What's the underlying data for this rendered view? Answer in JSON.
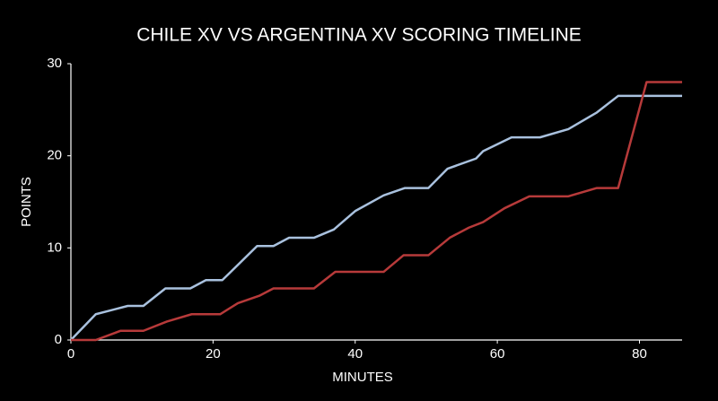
{
  "chart_data": {
    "type": "line",
    "title": "CHILE XV VS ARGENTINA XV SCORING TIMELINE",
    "x_label": "MINUTES",
    "y_label": "POINTS",
    "xlim": [
      0,
      86
    ],
    "xticks": [
      0,
      20,
      40,
      60,
      80
    ],
    "ylim": [
      0,
      30
    ],
    "yticks": [
      0,
      10,
      20,
      30
    ],
    "series": [
      {
        "color": "#a9c1de",
        "x": [
          0,
          3.5,
          8,
          10.2,
          13.3,
          16.8,
          19,
          21.3,
          26.2,
          28.5,
          30.7,
          34.2,
          37,
          40,
          44,
          47,
          50.3,
          53,
          57,
          58,
          62,
          66,
          70,
          74,
          77,
          86
        ],
        "values": [
          0,
          2.8,
          3.7,
          3.7,
          5.6,
          5.6,
          6.5,
          6.5,
          10.2,
          10.2,
          11.1,
          11.1,
          12,
          14,
          15.7,
          16.5,
          16.5,
          18.6,
          19.7,
          20.5,
          22,
          22,
          22.9,
          24.7,
          26.5,
          26.5
        ]
      },
      {
        "color": "#b73a3a",
        "x": [
          0,
          3.5,
          7,
          10.2,
          13.5,
          17,
          21,
          23.5,
          26.5,
          28.5,
          34.2,
          37.2,
          44,
          46.8,
          50.3,
          53.3,
          56,
          58,
          61,
          64.5,
          70,
          74,
          77,
          81,
          86
        ],
        "values": [
          0,
          0,
          1,
          1,
          2,
          2.8,
          2.8,
          4,
          4.8,
          5.6,
          5.6,
          7.4,
          7.4,
          9.2,
          9.2,
          11.1,
          12.2,
          12.8,
          14.3,
          15.6,
          15.6,
          16.5,
          16.5,
          28,
          28
        ]
      }
    ]
  }
}
